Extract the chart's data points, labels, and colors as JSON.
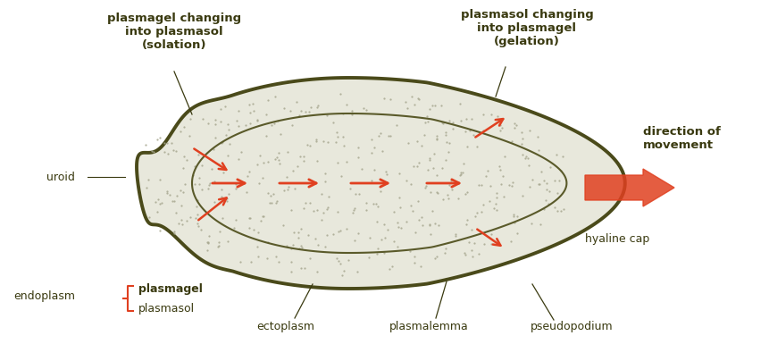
{
  "bg_color": "#ffffff",
  "body_fill": "#e8e8dc",
  "body_edge": "#4a4a1a",
  "inner_edge": "#5a5a2a",
  "arrow_color": "#e04020",
  "text_color": "#3a3a10",
  "labels": {
    "top_left": "plasmagel changing\ninto plasmasol\n(solation)",
    "top_right": "plasmasol changing\ninto plasmagel\n(gelation)",
    "uroid": "uroid",
    "direction": "direction of\nmovement",
    "hyaline": "hyaline cap",
    "endoplasm": "endoplasm",
    "plasmagel": "plasmagel",
    "plasmasol": "plasmasol",
    "ectoplasm": "ectoplasm",
    "plasmalemma": "plasmalemma",
    "pseudopodium": "pseudopodium"
  }
}
